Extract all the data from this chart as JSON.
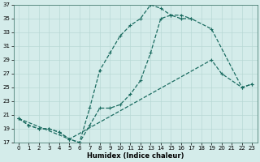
{
  "xlabel": "Humidex (Indice chaleur)",
  "bg_color": "#d4ecea",
  "grid_color": "#b8d8d5",
  "line_color": "#1a6b60",
  "xlim": [
    -0.5,
    23.5
  ],
  "ylim": [
    17,
    37
  ],
  "xticks": [
    0,
    1,
    2,
    3,
    4,
    5,
    6,
    7,
    8,
    9,
    10,
    11,
    12,
    13,
    14,
    15,
    16,
    17,
    18,
    19,
    20,
    21,
    22,
    23
  ],
  "yticks": [
    17,
    19,
    21,
    23,
    25,
    27,
    29,
    31,
    33,
    35,
    37
  ],
  "line1_x": [
    0,
    1,
    2,
    3,
    4,
    5,
    6,
    7,
    8,
    9,
    10,
    11,
    12,
    13,
    14,
    15,
    16,
    17,
    19,
    22,
    23
  ],
  "line1_y": [
    20.5,
    19.5,
    19,
    19,
    18.5,
    17.5,
    17,
    19.5,
    22,
    22,
    22.5,
    24,
    26,
    30,
    35,
    35.5,
    35,
    35,
    33.5,
    25,
    25.5
  ],
  "line2_x": [
    0,
    1,
    2,
    3,
    4,
    5,
    6,
    7,
    8,
    9,
    10,
    11,
    12,
    13,
    14,
    15,
    16,
    17
  ],
  "line2_y": [
    20.5,
    19.5,
    19,
    19,
    18.5,
    17.5,
    17,
    22,
    27.5,
    30,
    32.5,
    34,
    35,
    37,
    36.5,
    35.5,
    35.5,
    35
  ],
  "line3_x": [
    0,
    5,
    19,
    20,
    22,
    23
  ],
  "line3_y": [
    20.5,
    17.5,
    29,
    27,
    25,
    25.5
  ]
}
